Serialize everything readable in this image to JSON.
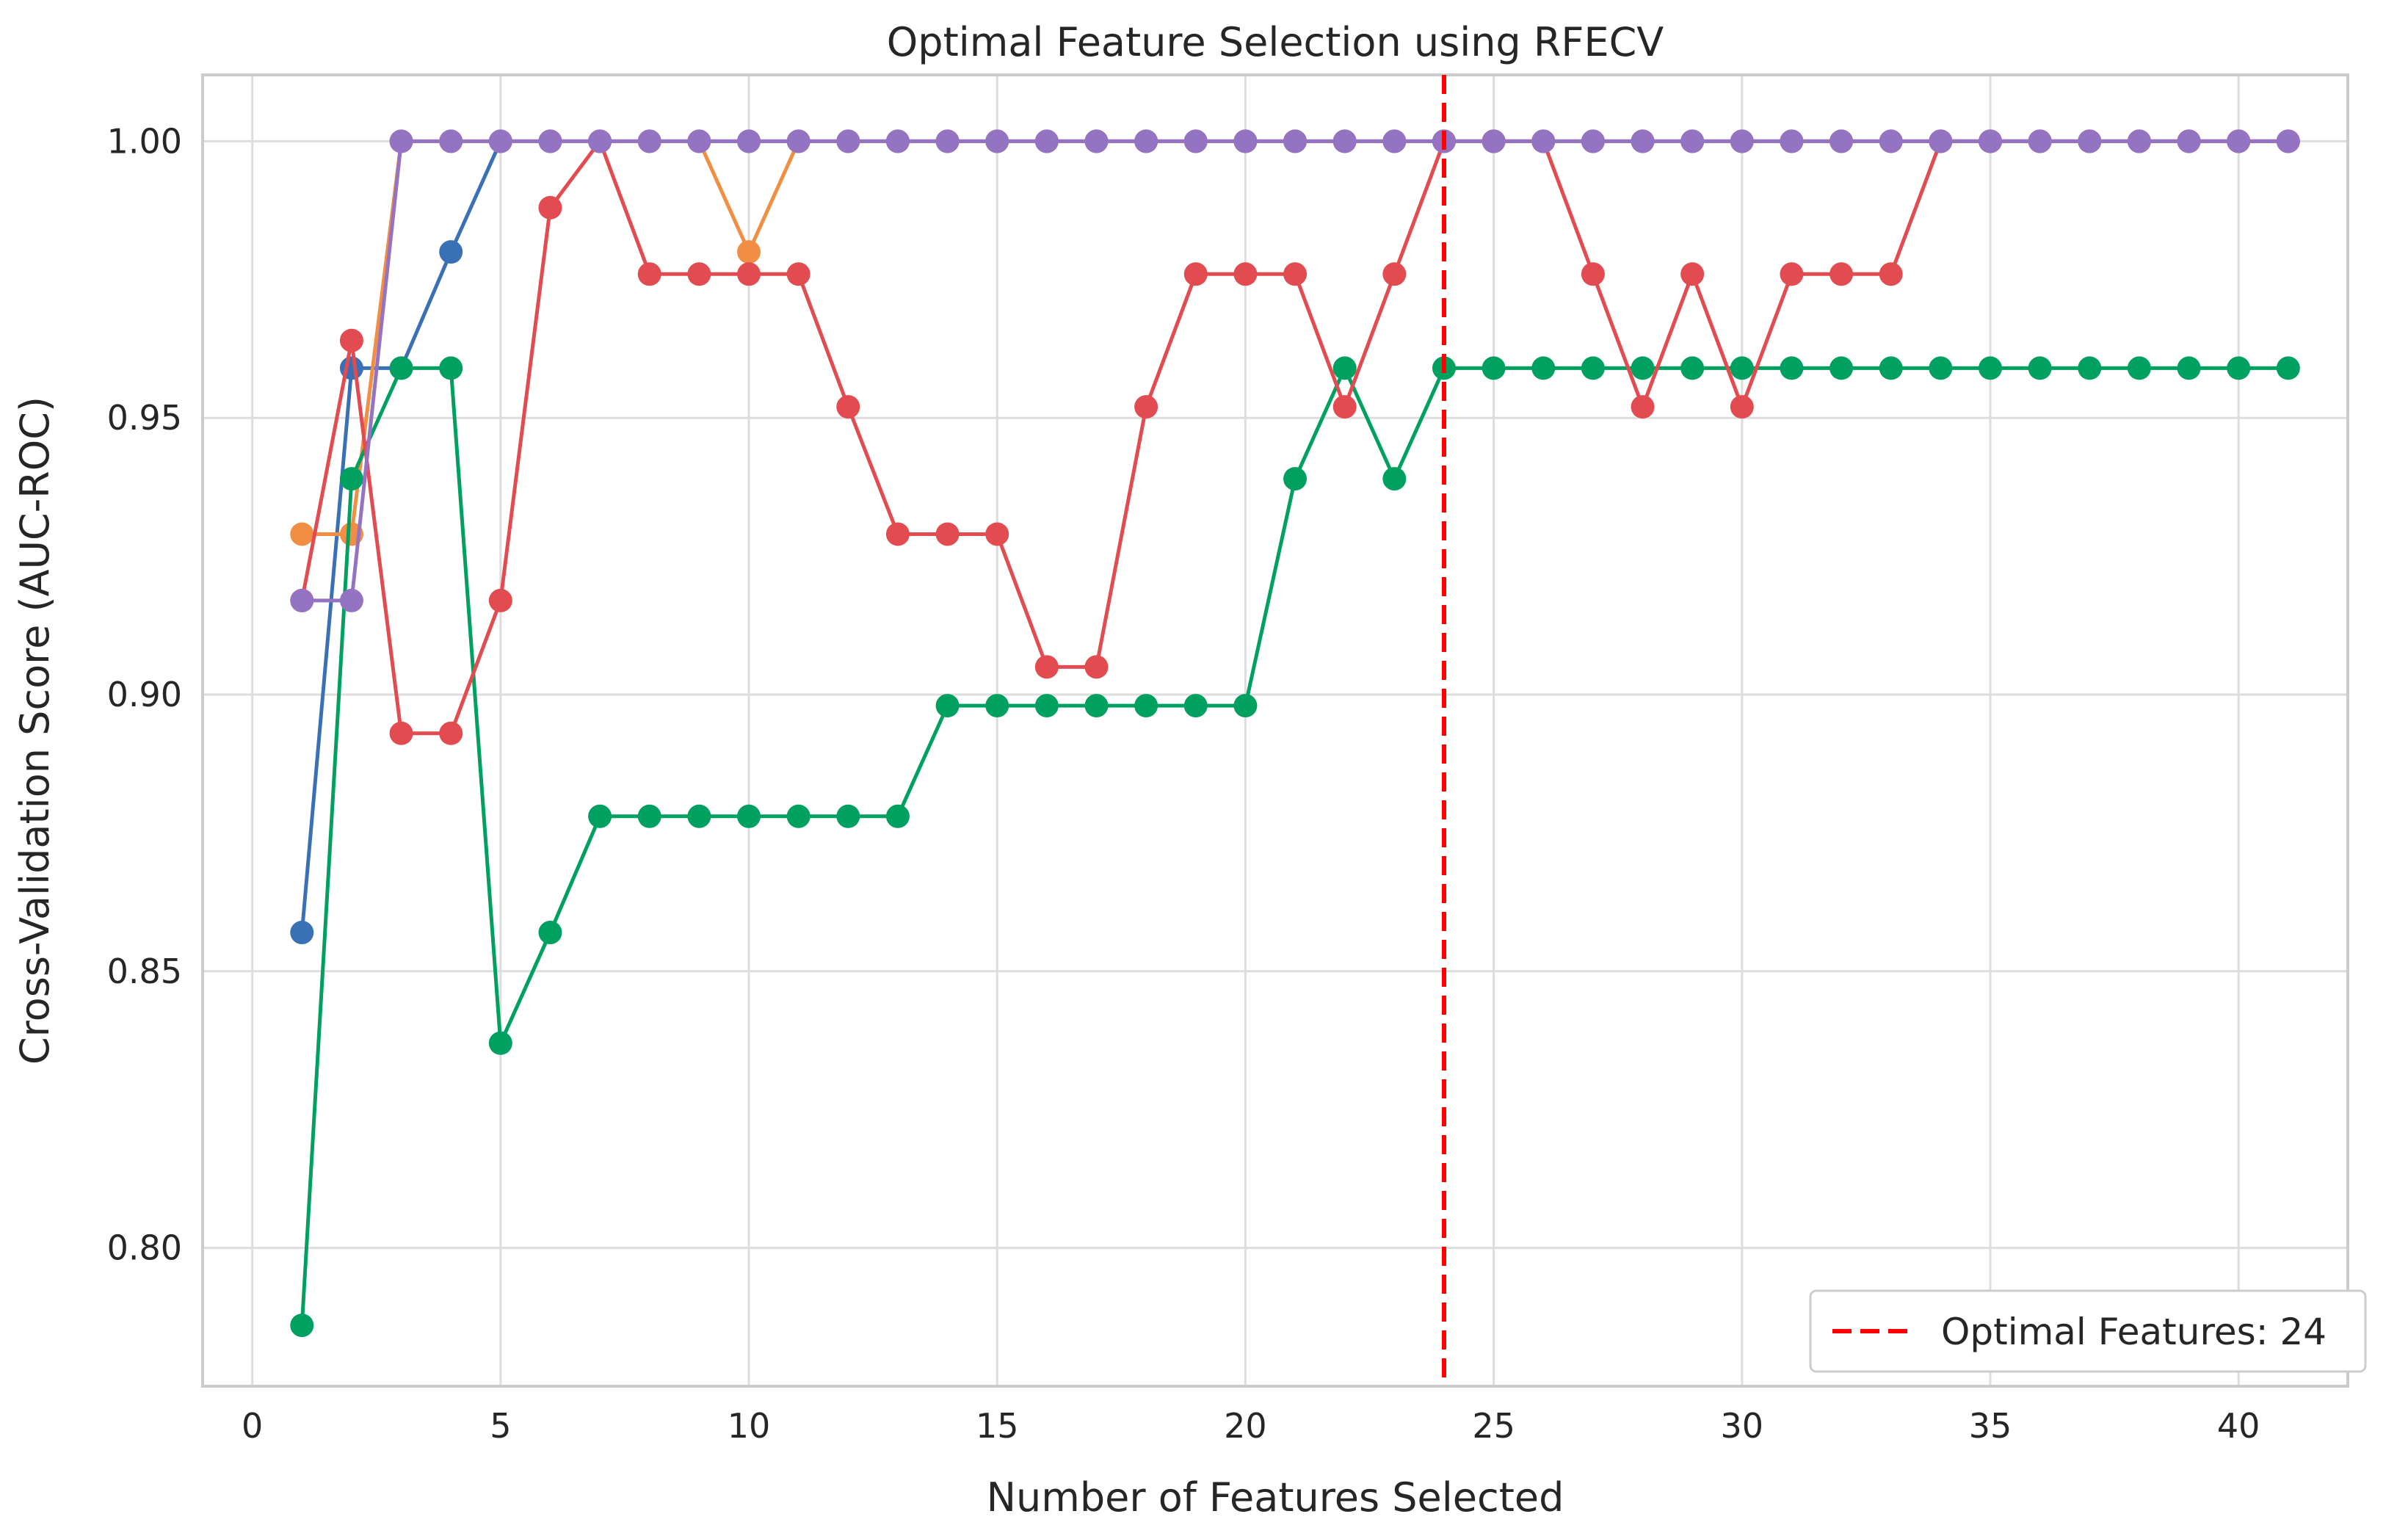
{
  "chart_data": {
    "type": "line",
    "title": "Optimal Feature Selection using RFECV",
    "xlabel": "Number of Features Selected",
    "ylabel": "Cross-Validation Score (AUC-ROC)",
    "xlim": [
      -1,
      42.2
    ],
    "ylim": [
      0.775,
      1.012
    ],
    "xticks": [
      0,
      5,
      10,
      15,
      20,
      25,
      30,
      35,
      40
    ],
    "yticks": [
      0.8,
      0.85,
      0.9,
      0.95,
      1.0
    ],
    "ytick_labels": [
      "0.80",
      "0.85",
      "0.90",
      "0.95",
      "1.00"
    ],
    "grid": true,
    "legend_position": "bottom-right",
    "legend": [
      {
        "label": "Optimal Features: 24",
        "color": "#ff0000",
        "style": "dashed"
      }
    ],
    "vline": {
      "x": 24,
      "color": "#ff0000"
    },
    "x": [
      1,
      2,
      3,
      4,
      5,
      6,
      7,
      8,
      9,
      10,
      11,
      12,
      13,
      14,
      15,
      16,
      17,
      18,
      19,
      20,
      21,
      22,
      23,
      24,
      25,
      26,
      27,
      28,
      29,
      30,
      31,
      32,
      33,
      34,
      35,
      36,
      37,
      38,
      39,
      40,
      41
    ],
    "series": [
      {
        "color": "#3a70b5",
        "values": [
          0.857,
          0.959,
          0.959,
          0.98,
          1.0,
          1.0,
          1.0,
          1.0,
          1.0,
          1.0,
          1.0,
          1.0,
          1.0,
          1.0,
          1.0,
          1.0,
          1.0,
          1.0,
          1.0,
          1.0,
          1.0,
          1.0,
          1.0,
          1.0,
          1.0,
          1.0,
          1.0,
          1.0,
          1.0,
          1.0,
          1.0,
          1.0,
          1.0,
          1.0,
          1.0,
          1.0,
          1.0,
          1.0,
          1.0,
          1.0,
          1.0
        ]
      },
      {
        "color": "#f28e44",
        "values": [
          0.929,
          0.929,
          1.0,
          1.0,
          1.0,
          1.0,
          1.0,
          1.0,
          1.0,
          0.98,
          1.0,
          1.0,
          1.0,
          1.0,
          1.0,
          1.0,
          1.0,
          1.0,
          1.0,
          1.0,
          1.0,
          1.0,
          1.0,
          1.0,
          1.0,
          1.0,
          1.0,
          1.0,
          1.0,
          1.0,
          1.0,
          1.0,
          1.0,
          1.0,
          1.0,
          1.0,
          1.0,
          1.0,
          1.0,
          1.0,
          1.0
        ]
      },
      {
        "color": "#00a060",
        "values": [
          0.786,
          0.939,
          0.959,
          0.959,
          0.837,
          0.857,
          0.878,
          0.878,
          0.878,
          0.878,
          0.878,
          0.878,
          0.878,
          0.898,
          0.898,
          0.898,
          0.898,
          0.898,
          0.898,
          0.898,
          0.939,
          0.959,
          0.939,
          0.959,
          0.959,
          0.959,
          0.959,
          0.959,
          0.959,
          0.959,
          0.959,
          0.959,
          0.959,
          0.959,
          0.959,
          0.959,
          0.959,
          0.959,
          0.959,
          0.959,
          0.959
        ]
      },
      {
        "color": "#e24b50",
        "values": [
          0.917,
          0.964,
          0.893,
          0.893,
          0.917,
          0.988,
          1.0,
          0.976,
          0.976,
          0.976,
          0.976,
          0.952,
          0.929,
          0.929,
          0.929,
          0.905,
          0.905,
          0.952,
          0.976,
          0.976,
          0.976,
          0.952,
          0.976,
          1.0,
          1.0,
          1.0,
          0.976,
          0.952,
          0.976,
          0.952,
          0.976,
          0.976,
          0.976,
          1.0,
          1.0,
          1.0,
          1.0,
          1.0,
          1.0,
          1.0,
          1.0
        ]
      },
      {
        "color": "#9474c2",
        "values": [
          0.917,
          0.917,
          1.0,
          1.0,
          1.0,
          1.0,
          1.0,
          1.0,
          1.0,
          1.0,
          1.0,
          1.0,
          1.0,
          1.0,
          1.0,
          1.0,
          1.0,
          1.0,
          1.0,
          1.0,
          1.0,
          1.0,
          1.0,
          1.0,
          1.0,
          1.0,
          1.0,
          1.0,
          1.0,
          1.0,
          1.0,
          1.0,
          1.0,
          1.0,
          1.0,
          1.0,
          1.0,
          1.0,
          1.0,
          1.0,
          1.0
        ]
      }
    ]
  }
}
